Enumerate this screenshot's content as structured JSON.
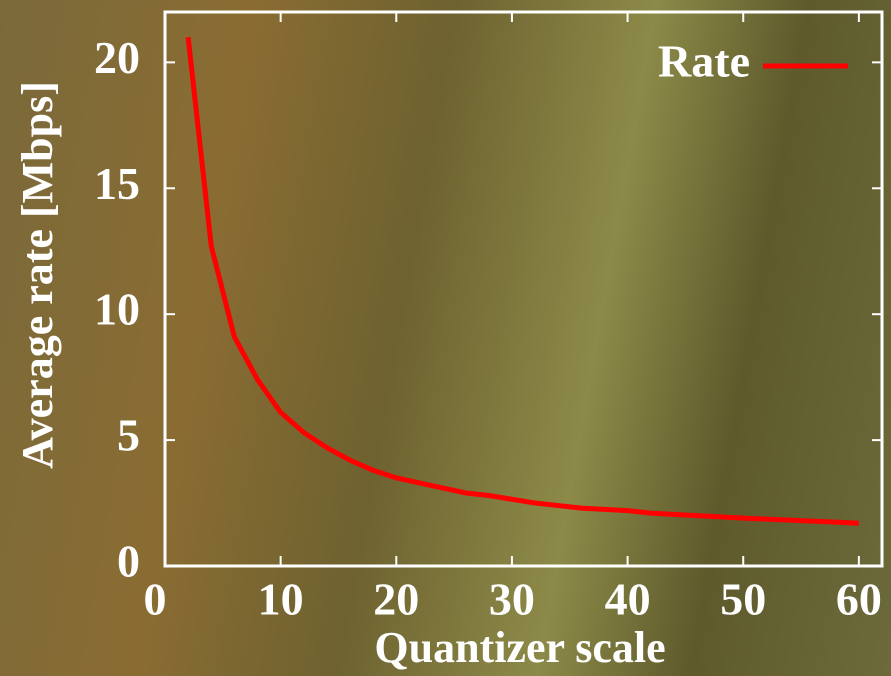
{
  "chart_data": {
    "type": "line",
    "x_label": "Quantizer scale",
    "y_label": "Average rate [Mbps]",
    "xlim": [
      0,
      62
    ],
    "ylim": [
      0,
      22
    ],
    "xticks": [
      0,
      10,
      20,
      30,
      40,
      50,
      60
    ],
    "yticks": [
      0,
      5,
      10,
      15,
      20
    ],
    "grid": false,
    "legend": "upper right",
    "x": [
      2,
      4,
      6,
      8,
      10,
      12,
      14,
      16,
      18,
      20,
      22,
      24,
      26,
      28,
      30,
      32,
      34,
      36,
      38,
      40,
      42,
      44,
      46,
      48,
      50,
      52,
      54,
      56,
      58,
      60
    ],
    "series": [
      {
        "name": "Rate",
        "color": "#ff0000",
        "values": [
          21.0,
          12.7,
          9.1,
          7.4,
          6.1,
          5.3,
          4.7,
          4.2,
          3.8,
          3.5,
          3.3,
          3.1,
          2.9,
          2.8,
          2.65,
          2.5,
          2.4,
          2.3,
          2.25,
          2.2,
          2.1,
          2.05,
          2.0,
          1.95,
          1.9,
          1.86,
          1.82,
          1.78,
          1.74,
          1.7
        ]
      }
    ]
  }
}
